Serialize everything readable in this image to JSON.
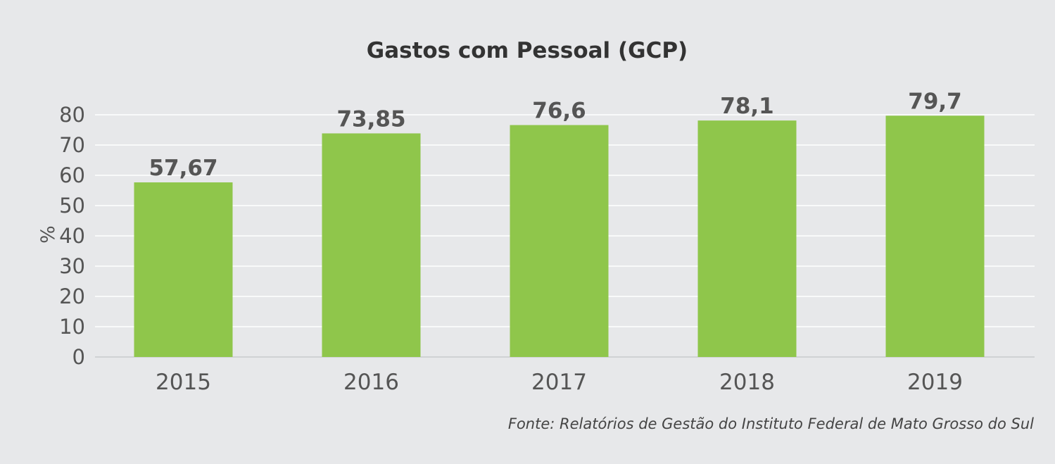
{
  "chart_data": {
    "type": "bar",
    "title": "Gastos com Pessoal (GCP)",
    "xlabel": "",
    "ylabel": "%",
    "categories": [
      "2015",
      "2016",
      "2017",
      "2018",
      "2019"
    ],
    "values": [
      57.67,
      73.85,
      76.6,
      78.1,
      79.7
    ],
    "value_labels": [
      "57,67",
      "73,85",
      "76,6",
      "78,1",
      "79,7"
    ],
    "y_ticks": [
      "0",
      "10",
      "20",
      "30",
      "40",
      "50",
      "60",
      "70",
      "80"
    ],
    "ylim": [
      0,
      80
    ],
    "grid": true,
    "legend": "none",
    "colors": {
      "bar": "#8fc64b",
      "grid": "#ffffff",
      "background": "#e7e8ea"
    }
  },
  "source": "Fonte: Relatórios de Gestão do Instituto Federal de Mato Grosso do Sul"
}
